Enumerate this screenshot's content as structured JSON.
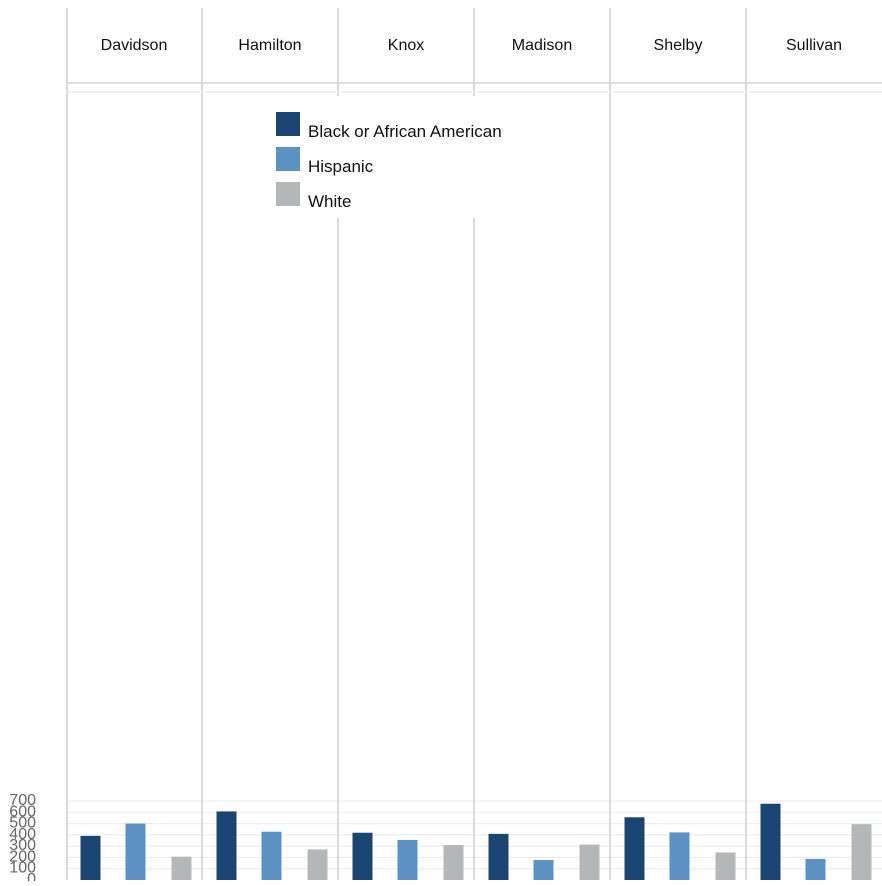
{
  "chart_data": {
    "type": "bar",
    "facets": [
      "Davidson",
      "Hamilton",
      "Knox",
      "Madison",
      "Shelby",
      "Sullivan"
    ],
    "series": [
      {
        "name": "Black or African American",
        "color": "#1a4471",
        "values": [
          391,
          608,
          419,
          409,
          556,
          676
        ]
      },
      {
        "name": "Hispanic",
        "color": "#5b92c3",
        "values": [
          500,
          428,
          355,
          177,
          422,
          187
        ]
      },
      {
        "name": "White",
        "color": "#b4b7b8",
        "values": [
          207,
          271,
          310,
          314,
          244,
          495
        ]
      }
    ],
    "ylim": [
      0,
      700
    ],
    "yticks": [
      "0",
      "100",
      "200",
      "300",
      "400",
      "500",
      "600",
      "700"
    ],
    "grid": true,
    "legend_position": "top"
  }
}
